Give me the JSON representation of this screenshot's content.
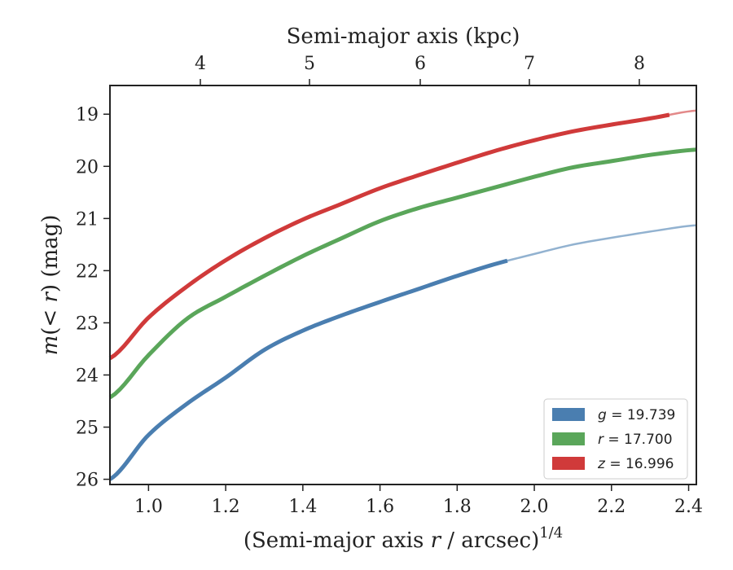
{
  "chart_data": {
    "type": "line",
    "x_label_prefix": "(Semi-major axis ",
    "x_label_var": "r",
    "x_label_suffix": " / arcsec)",
    "x_label_sup": "1/4",
    "top_xlabel": "Semi-major axis (kpc)",
    "y_label_prefix": "m",
    "y_label_mid": "(< ",
    "y_label_var": "r",
    "y_label_suffix": ") (mag)",
    "xlim": [
      0.9,
      2.42
    ],
    "ylim": [
      26.1,
      18.45
    ],
    "y_inverted": true,
    "x_ticks": [
      "1.0",
      "1.2",
      "1.4",
      "1.6",
      "1.8",
      "2.0",
      "2.2",
      "2.4"
    ],
    "x_tick_values": [
      1.0,
      1.2,
      1.4,
      1.6,
      1.8,
      2.0,
      2.2,
      2.4
    ],
    "y_ticks": [
      "19",
      "20",
      "21",
      "22",
      "23",
      "24",
      "25",
      "26"
    ],
    "y_tick_values": [
      19,
      20,
      21,
      22,
      23,
      24,
      25,
      26
    ],
    "top_x_ticks": [
      "4",
      "5",
      "6",
      "7",
      "8"
    ],
    "top_x_tick_kpc": [
      4,
      5,
      6,
      7,
      8
    ],
    "grid": false,
    "legend_position": "lower-right",
    "series": [
      {
        "name": "g = 19.739",
        "legend_var": "g",
        "legend_value": "= 19.739",
        "color": "#4a7eb0",
        "data_x_max": 1.93,
        "model": {
          "x": [
            0.9,
            1.0,
            1.1,
            1.2,
            1.3,
            1.4,
            1.5,
            1.6,
            1.7,
            1.8,
            1.9,
            2.0,
            2.1,
            2.2,
            2.3,
            2.42
          ],
          "y": [
            26.0,
            25.15,
            24.55,
            24.05,
            23.52,
            23.15,
            22.86,
            22.6,
            22.35,
            22.1,
            21.87,
            21.68,
            21.5,
            21.37,
            21.25,
            21.13
          ]
        }
      },
      {
        "name": "r = 17.700",
        "legend_var": "r",
        "legend_value": "= 17.700",
        "color": "#5aa65a",
        "data_x_max": 2.42,
        "model": {
          "x": [
            0.9,
            1.0,
            1.1,
            1.2,
            1.3,
            1.4,
            1.5,
            1.6,
            1.7,
            1.8,
            1.9,
            2.0,
            2.1,
            2.2,
            2.3,
            2.42
          ],
          "y": [
            24.43,
            23.62,
            22.92,
            22.5,
            22.1,
            21.72,
            21.38,
            21.05,
            20.8,
            20.6,
            20.4,
            20.2,
            20.02,
            19.9,
            19.78,
            19.68
          ]
        }
      },
      {
        "name": "z = 16.996",
        "legend_var": "z",
        "legend_value": "= 16.996",
        "color": "#d03a3a",
        "data_x_max": 2.35,
        "model": {
          "x": [
            0.9,
            1.0,
            1.1,
            1.2,
            1.3,
            1.4,
            1.5,
            1.6,
            1.7,
            1.8,
            1.9,
            2.0,
            2.1,
            2.2,
            2.3,
            2.42
          ],
          "y": [
            23.68,
            22.9,
            22.3,
            21.8,
            21.38,
            21.02,
            20.72,
            20.42,
            20.17,
            19.93,
            19.7,
            19.5,
            19.33,
            19.2,
            19.08,
            18.93
          ]
        }
      }
    ]
  }
}
